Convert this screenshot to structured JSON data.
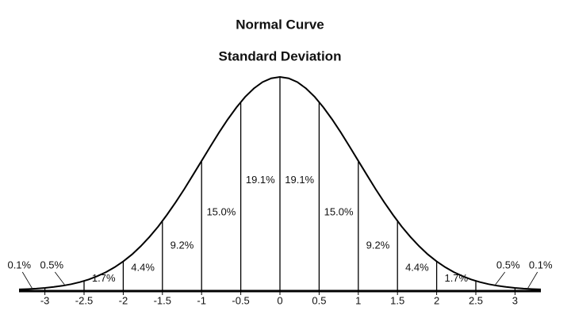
{
  "chart_data": {
    "type": "normal-curve",
    "title": "Normal Curve",
    "subtitle": "Standard Deviation",
    "values": [
      0.1,
      0.5,
      1.7,
      4.4,
      9.2,
      15.0,
      19.1,
      19.1,
      15.0,
      9.2,
      4.4,
      1.7,
      0.5,
      0.1
    ],
    "value_labels": [
      "0.1%",
      "0.5%",
      "1.7%",
      "4.4%",
      "9.2%",
      "15.0%",
      "19.1%",
      "19.1%",
      "15.0%",
      "9.2%",
      "4.4%",
      "1.7%",
      "0.5%",
      "0.1%"
    ],
    "xlim": [
      -3.33,
      3.33
    ],
    "xticks": [
      -3,
      -2.5,
      -2,
      -1.5,
      -1,
      -0.5,
      0,
      0.5,
      1,
      1.5,
      2,
      2.5,
      3
    ],
    "color": "#000000"
  }
}
